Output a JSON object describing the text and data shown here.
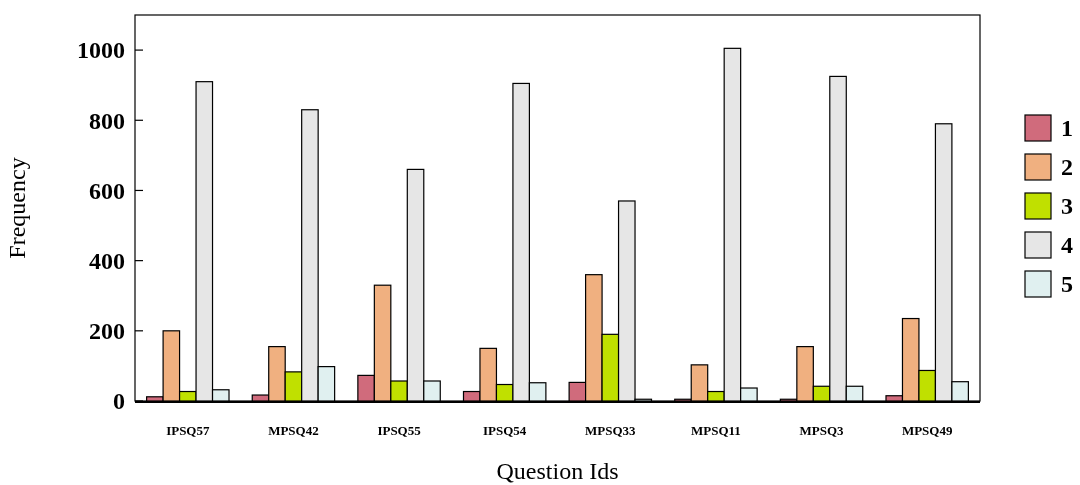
{
  "chart_data": {
    "type": "bar",
    "xlabel": "Question Ids",
    "ylabel": "Frequency",
    "categories": [
      "IPSQ57",
      "MPSQ42",
      "IPSQ55",
      "IPSQ54",
      "MPSQ33",
      "MPSQ11",
      "MPSQ3",
      "MPSQ49"
    ],
    "series": [
      {
        "name": "1",
        "color": "#d06b7c",
        "values": [
          12,
          17,
          73,
          27,
          53,
          5,
          5,
          15
        ]
      },
      {
        "name": "2",
        "color": "#f0b080",
        "values": [
          200,
          155,
          330,
          150,
          360,
          103,
          155,
          235
        ]
      },
      {
        "name": "3",
        "color": "#c0e000",
        "values": [
          27,
          83,
          57,
          47,
          190,
          27,
          42,
          87
        ]
      },
      {
        "name": "4",
        "color": "#e6e6e6",
        "values": [
          910,
          830,
          660,
          905,
          570,
          1005,
          925,
          790
        ]
      },
      {
        "name": "5",
        "color": "#e0f0f0",
        "values": [
          32,
          98,
          57,
          52,
          5,
          37,
          42,
          55
        ]
      }
    ],
    "ylim": [
      0,
      1100
    ],
    "yticks": [
      0,
      200,
      400,
      600,
      800,
      1000
    ],
    "legend": "right"
  }
}
